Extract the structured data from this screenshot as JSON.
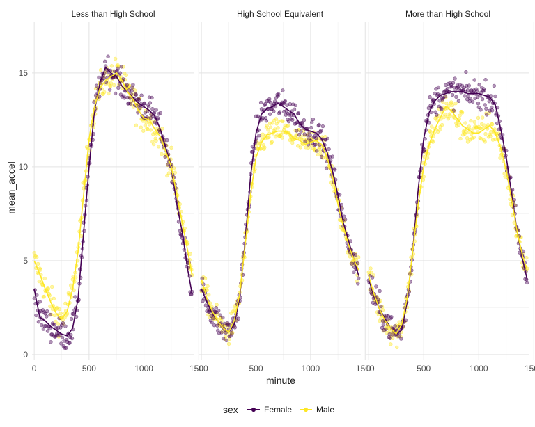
{
  "chart_data": {
    "type": "scatter",
    "xlabel": "minute",
    "ylabel": "mean_accel",
    "xlim": [
      -20,
      1460
    ],
    "ylim": [
      -0.3,
      17.7
    ],
    "x_ticks": [
      0,
      500,
      1000,
      1500
    ],
    "x_tick_labels": [
      "0",
      "500",
      "1000",
      "1500"
    ],
    "y_ticks": [
      0,
      5,
      10,
      15
    ],
    "y_tick_labels": [
      "0",
      "5",
      "10",
      "15"
    ],
    "grid": true,
    "legend": {
      "title": "sex",
      "placement": "bottom",
      "entries": [
        {
          "label": "Female",
          "color": "#440154"
        },
        {
          "label": "Male",
          "color": "#FDE725"
        }
      ]
    },
    "colors": {
      "Female": "#440154",
      "Male": "#FDE725"
    },
    "panels": [
      {
        "title": "Less than High School",
        "series": [
          {
            "name": "Female",
            "color": "#440154",
            "x": [
              0,
              50,
              100,
              150,
              200,
              250,
              300,
              350,
              400,
              450,
              500,
              550,
              600,
              650,
              700,
              750,
              800,
              850,
              900,
              950,
              1000,
              1050,
              1100,
              1150,
              1200,
              1250,
              1300,
              1350,
              1400,
              1440
            ],
            "y": [
              3.5,
              2.0,
              1.8,
              1.5,
              1.3,
              1.1,
              1.0,
              1.4,
              3.0,
              6.5,
              10.0,
              13.0,
              14.5,
              15.3,
              15.0,
              14.8,
              14.3,
              14.0,
              13.7,
              13.4,
              13.2,
              13.0,
              12.7,
              12.0,
              11.0,
              10.0,
              8.0,
              6.5,
              4.5,
              3.2
            ],
            "spread": 0.55
          },
          {
            "name": "Male",
            "color": "#FDE725",
            "x": [
              0,
              50,
              100,
              150,
              200,
              250,
              300,
              350,
              400,
              450,
              500,
              550,
              600,
              650,
              700,
              750,
              800,
              850,
              900,
              950,
              1000,
              1050,
              1100,
              1150,
              1200,
              1250,
              1300,
              1350,
              1400,
              1440
            ],
            "y": [
              5.0,
              4.3,
              3.5,
              2.8,
              2.2,
              1.9,
              2.3,
              3.5,
              5.5,
              8.5,
              11.5,
              13.2,
              14.2,
              14.6,
              14.8,
              15.0,
              14.6,
              14.0,
              13.6,
              13.0,
              12.6,
              12.5,
              12.0,
              11.6,
              10.8,
              10.0,
              8.5,
              7.0,
              5.5,
              4.2
            ],
            "spread": 0.6
          }
        ]
      },
      {
        "title": "High School Equivalent",
        "series": [
          {
            "name": "Female",
            "color": "#440154",
            "x": [
              0,
              50,
              100,
              150,
              200,
              250,
              300,
              350,
              400,
              450,
              500,
              550,
              600,
              650,
              700,
              750,
              800,
              850,
              900,
              950,
              1000,
              1050,
              1100,
              1150,
              1200,
              1250,
              1300,
              1350,
              1400,
              1440
            ],
            "y": [
              3.5,
              2.8,
              2.2,
              1.8,
              1.4,
              1.2,
              1.6,
              3.0,
              6.0,
              9.5,
              11.8,
              12.8,
              13.1,
              13.2,
              13.4,
              13.2,
              13.0,
              12.8,
              12.3,
              12.0,
              11.9,
              11.8,
              11.5,
              10.8,
              9.8,
              8.5,
              7.0,
              6.0,
              5.0,
              4.2
            ],
            "spread": 0.55
          },
          {
            "name": "Male",
            "color": "#FDE725",
            "x": [
              0,
              50,
              100,
              150,
              200,
              250,
              300,
              350,
              400,
              450,
              500,
              550,
              600,
              650,
              700,
              750,
              800,
              850,
              900,
              950,
              1000,
              1050,
              1100,
              1150,
              1200,
              1250,
              1300,
              1350,
              1400,
              1440
            ],
            "y": [
              4.0,
              3.0,
              2.3,
              1.8,
              1.4,
              1.2,
              1.8,
              3.2,
              5.8,
              8.5,
              10.5,
              11.3,
              11.7,
              11.8,
              11.9,
              11.9,
              11.8,
              11.5,
              11.4,
              11.2,
              11.3,
              11.4,
              11.2,
              10.5,
              9.5,
              8.0,
              6.8,
              5.8,
              5.0,
              4.5
            ],
            "spread": 0.5
          }
        ]
      },
      {
        "title": "More than High School",
        "series": [
          {
            "name": "Female",
            "color": "#440154",
            "x": [
              0,
              50,
              100,
              150,
              200,
              250,
              300,
              350,
              400,
              450,
              500,
              550,
              600,
              650,
              700,
              750,
              800,
              850,
              900,
              950,
              1000,
              1050,
              1100,
              1150,
              1200,
              1250,
              1300,
              1350,
              1400,
              1440
            ],
            "y": [
              4.0,
              3.1,
              2.4,
              1.9,
              1.4,
              1.1,
              1.3,
              2.8,
              5.5,
              8.8,
              11.5,
              12.9,
              13.5,
              13.8,
              13.9,
              14.0,
              14.0,
              14.0,
              13.9,
              13.9,
              13.9,
              13.8,
              13.7,
              13.3,
              12.0,
              10.5,
              8.5,
              6.5,
              5.0,
              4.0
            ],
            "spread": 0.55
          },
          {
            "name": "Male",
            "color": "#FDE725",
            "x": [
              0,
              50,
              100,
              150,
              200,
              250,
              300,
              350,
              400,
              450,
              500,
              550,
              600,
              650,
              700,
              750,
              800,
              850,
              900,
              950,
              1000,
              1050,
              1100,
              1150,
              1200,
              1250,
              1300,
              1350,
              1400,
              1440
            ],
            "y": [
              4.2,
              3.2,
              2.4,
              1.8,
              1.4,
              1.1,
              1.6,
              3.0,
              5.5,
              8.0,
              10.0,
              11.2,
              12.0,
              12.6,
              13.2,
              13.0,
              12.6,
              12.2,
              12.0,
              11.8,
              11.8,
              12.0,
              12.2,
              11.8,
              11.0,
              9.8,
              8.2,
              6.5,
              5.2,
              4.5
            ],
            "spread": 0.6
          }
        ]
      }
    ]
  }
}
